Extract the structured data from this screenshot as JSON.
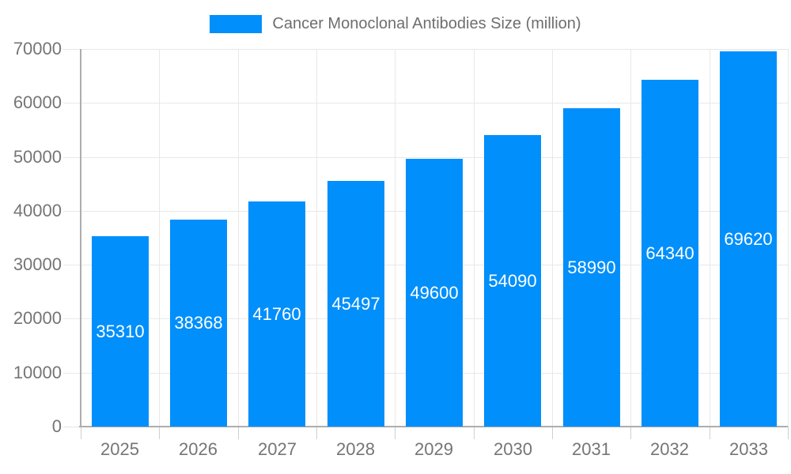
{
  "legend": {
    "label": "Cancer Monoclonal Antibodies Size (million)"
  },
  "chart_data": {
    "type": "bar",
    "title": "Cancer Monoclonal Antibodies Size (million)",
    "categories": [
      "2025",
      "2026",
      "2027",
      "2028",
      "2029",
      "2030",
      "2031",
      "2032",
      "2033"
    ],
    "values": [
      35310,
      38368,
      41760,
      45497,
      49600,
      54090,
      58990,
      64340,
      69620
    ],
    "value_labels": [
      "35310",
      "38368",
      "41760",
      "45497",
      "49600",
      "54090",
      "58990",
      "64340",
      "69620"
    ],
    "xlabel": "",
    "ylabel": "",
    "ylim": [
      0,
      70000
    ],
    "yticks": [
      0,
      10000,
      20000,
      30000,
      40000,
      50000,
      60000,
      70000
    ],
    "ytick_labels": [
      "0",
      "10000",
      "20000",
      "30000",
      "40000",
      "50000",
      "60000",
      "70000"
    ],
    "grid": true,
    "legend_position": "top",
    "colors": {
      "bar": "#008FFB",
      "value_label": "#FFFFFF",
      "axis_label": "#757575",
      "legend_label": "#6E6E6E",
      "gridline": "#E8E8E8",
      "axis_line": "#ADADAD",
      "background": "#FFFFFF"
    }
  }
}
